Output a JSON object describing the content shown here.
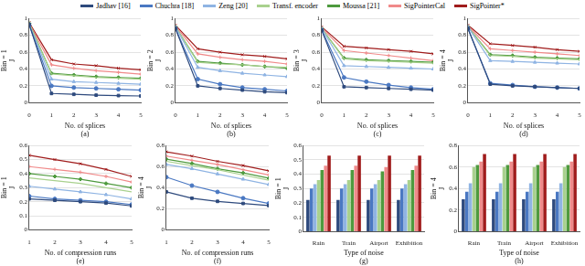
{
  "chart_data": [
    {
      "type": "line",
      "caption": "(a)",
      "annotation": "Bin = 1",
      "y_label": "J",
      "x_label": "No. of splices",
      "legend": "top",
      "x": [
        0,
        1,
        2,
        3,
        4,
        5
      ],
      "xlim": [
        0,
        5
      ],
      "xticks": [
        0,
        1,
        2,
        3,
        4,
        5
      ],
      "ylim": [
        0,
        1
      ],
      "yticks": [
        0,
        0.2,
        0.4,
        0.6,
        0.8,
        1
      ],
      "grid": true,
      "series": [
        {
          "name": "Jadhav [16]",
          "color": "#2e4a7d",
          "marker": "square",
          "values": [
            0.93,
            0.11,
            0.1,
            0.09,
            0.085,
            0.08
          ]
        },
        {
          "name": "Chuchra [18]",
          "color": "#4a78c2",
          "marker": "circle",
          "values": [
            0.92,
            0.2,
            0.18,
            0.17,
            0.16,
            0.15
          ]
        },
        {
          "name": "Zeng [20]",
          "color": "#8fb4e3",
          "marker": "triangle",
          "values": [
            0.93,
            0.28,
            0.25,
            0.24,
            0.23,
            0.22
          ]
        },
        {
          "name": "Transf. encoder",
          "color": "#a9d18e",
          "marker": "none",
          "values": [
            0.94,
            0.34,
            0.32,
            0.3,
            0.29,
            0.28
          ]
        },
        {
          "name": "Moussa [21]",
          "color": "#4e9a3e",
          "marker": "diamond",
          "values": [
            0.94,
            0.35,
            0.33,
            0.31,
            0.3,
            0.29
          ]
        },
        {
          "name": "SigPointerCal",
          "color": "#f08a8a",
          "marker": "cross",
          "values": [
            0.94,
            0.45,
            0.41,
            0.38,
            0.36,
            0.34
          ]
        },
        {
          "name": "SigPointer*",
          "color": "#a01c1c",
          "marker": "x",
          "values": [
            0.95,
            0.51,
            0.46,
            0.44,
            0.41,
            0.39
          ]
        }
      ]
    },
    {
      "type": "line",
      "caption": "(b)",
      "annotation": "Bin = 2",
      "y_label": "J",
      "x_label": "No. of splices",
      "x": [
        0,
        1,
        2,
        3,
        4,
        5
      ],
      "xlim": [
        0,
        5
      ],
      "xticks": [
        0,
        1,
        2,
        3,
        4,
        5
      ],
      "ylim": [
        0,
        1
      ],
      "yticks": [
        0,
        0.2,
        0.4,
        0.6,
        0.8,
        1
      ],
      "grid": true,
      "series": [
        {
          "name": "Jadhav [16]",
          "color": "#2e4a7d",
          "marker": "square",
          "values": [
            0.88,
            0.2,
            0.17,
            0.15,
            0.13,
            0.12
          ]
        },
        {
          "name": "Chuchra [18]",
          "color": "#4a78c2",
          "marker": "circle",
          "values": [
            0.88,
            0.28,
            0.22,
            0.18,
            0.16,
            0.14
          ]
        },
        {
          "name": "Zeng [20]",
          "color": "#8fb4e3",
          "marker": "triangle",
          "values": [
            0.9,
            0.42,
            0.38,
            0.35,
            0.33,
            0.31
          ]
        },
        {
          "name": "Transf. encoder",
          "color": "#a9d18e",
          "marker": "none",
          "values": [
            0.9,
            0.48,
            0.46,
            0.45,
            0.43,
            0.42
          ]
        },
        {
          "name": "Moussa [21]",
          "color": "#4e9a3e",
          "marker": "diamond",
          "values": [
            0.9,
            0.49,
            0.47,
            0.45,
            0.43,
            0.41
          ]
        },
        {
          "name": "SigPointerCal",
          "color": "#f08a8a",
          "marker": "cross",
          "values": [
            0.91,
            0.58,
            0.54,
            0.51,
            0.49,
            0.46
          ]
        },
        {
          "name": "SigPointer*",
          "color": "#a01c1c",
          "marker": "x",
          "values": [
            0.92,
            0.64,
            0.6,
            0.57,
            0.55,
            0.52
          ]
        }
      ]
    },
    {
      "type": "line",
      "caption": "(c)",
      "annotation": "Bin = 3",
      "y_label": "J",
      "x_label": "No. of splices",
      "x": [
        0,
        1,
        2,
        3,
        4,
        5
      ],
      "xlim": [
        0,
        5
      ],
      "xticks": [
        0,
        1,
        2,
        3,
        4,
        5
      ],
      "ylim": [
        0,
        1
      ],
      "yticks": [
        0,
        0.2,
        0.4,
        0.6,
        0.8,
        1
      ],
      "grid": true,
      "series": [
        {
          "name": "Jadhav [16]",
          "color": "#2e4a7d",
          "marker": "square",
          "values": [
            0.86,
            0.19,
            0.18,
            0.17,
            0.16,
            0.15
          ]
        },
        {
          "name": "Chuchra [18]",
          "color": "#4a78c2",
          "marker": "circle",
          "values": [
            0.86,
            0.3,
            0.25,
            0.21,
            0.18,
            0.16
          ]
        },
        {
          "name": "Zeng [20]",
          "color": "#8fb4e3",
          "marker": "triangle",
          "values": [
            0.88,
            0.44,
            0.43,
            0.42,
            0.41,
            0.4
          ]
        },
        {
          "name": "Transf. encoder",
          "color": "#a9d18e",
          "marker": "none",
          "values": [
            0.88,
            0.52,
            0.5,
            0.49,
            0.48,
            0.47
          ]
        },
        {
          "name": "Moussa [21]",
          "color": "#4e9a3e",
          "marker": "diamond",
          "values": [
            0.88,
            0.53,
            0.51,
            0.5,
            0.49,
            0.48
          ]
        },
        {
          "name": "SigPointerCal",
          "color": "#f08a8a",
          "marker": "cross",
          "values": [
            0.89,
            0.62,
            0.59,
            0.56,
            0.53,
            0.5
          ]
        },
        {
          "name": "SigPointer*",
          "color": "#a01c1c",
          "marker": "x",
          "values": [
            0.9,
            0.67,
            0.65,
            0.63,
            0.61,
            0.58
          ]
        }
      ]
    },
    {
      "type": "line",
      "caption": "(d)",
      "annotation": "Bin = 4",
      "y_label": "J",
      "x_label": "No. of splices",
      "x": [
        0,
        1,
        2,
        3,
        4,
        5
      ],
      "xlim": [
        0,
        5
      ],
      "xticks": [
        0,
        1,
        2,
        3,
        4,
        5
      ],
      "ylim": [
        0,
        1
      ],
      "yticks": [
        0,
        0.2,
        0.4,
        0.6,
        0.8,
        1
      ],
      "grid": true,
      "series": [
        {
          "name": "Jadhav [16]",
          "color": "#2e4a7d",
          "marker": "square",
          "values": [
            0.88,
            0.22,
            0.2,
            0.19,
            0.18,
            0.17
          ]
        },
        {
          "name": "Chuchra [18]",
          "color": "#4a78c2",
          "marker": "circle",
          "values": [
            0.88,
            0.23,
            0.21,
            0.19,
            0.18,
            0.17
          ]
        },
        {
          "name": "Zeng [20]",
          "color": "#8fb4e3",
          "marker": "triangle",
          "values": [
            0.9,
            0.5,
            0.49,
            0.48,
            0.47,
            0.46
          ]
        },
        {
          "name": "Transf. encoder",
          "color": "#a9d18e",
          "marker": "none",
          "values": [
            0.9,
            0.56,
            0.55,
            0.53,
            0.52,
            0.51
          ]
        },
        {
          "name": "Moussa [21]",
          "color": "#4e9a3e",
          "marker": "diamond",
          "values": [
            0.9,
            0.57,
            0.56,
            0.54,
            0.53,
            0.52
          ]
        },
        {
          "name": "SigPointerCal",
          "color": "#f08a8a",
          "marker": "cross",
          "values": [
            0.91,
            0.64,
            0.62,
            0.6,
            0.58,
            0.56
          ]
        },
        {
          "name": "SigPointer*",
          "color": "#a01c1c",
          "marker": "x",
          "values": [
            0.92,
            0.7,
            0.68,
            0.66,
            0.63,
            0.61
          ]
        }
      ]
    },
    {
      "type": "line",
      "caption": "(e)",
      "annotation": "Bin = 1",
      "y_label": "J",
      "x_label": "No. of compression runs",
      "x": [
        1,
        2,
        3,
        4,
        5
      ],
      "xlim": [
        1,
        5
      ],
      "xticks": [
        1,
        2,
        3,
        4,
        5
      ],
      "ylim": [
        0,
        0.6
      ],
      "yticks": [
        0,
        0.1,
        0.2,
        0.3,
        0.4,
        0.5,
        0.6
      ],
      "grid": true,
      "series": [
        {
          "name": "Jadhav [16]",
          "color": "#2e4a7d",
          "marker": "square",
          "values": [
            0.22,
            0.21,
            0.2,
            0.19,
            0.17
          ]
        },
        {
          "name": "Chuchra [18]",
          "color": "#4a78c2",
          "marker": "circle",
          "values": [
            0.24,
            0.22,
            0.21,
            0.2,
            0.18
          ]
        },
        {
          "name": "Zeng [20]",
          "color": "#8fb4e3",
          "marker": "triangle",
          "values": [
            0.31,
            0.29,
            0.27,
            0.25,
            0.22
          ]
        },
        {
          "name": "Transf. encoder",
          "color": "#a9d18e",
          "marker": "none",
          "values": [
            0.37,
            0.35,
            0.33,
            0.3,
            0.27
          ]
        },
        {
          "name": "Moussa [21]",
          "color": "#4e9a3e",
          "marker": "diamond",
          "values": [
            0.4,
            0.38,
            0.36,
            0.33,
            0.3
          ]
        },
        {
          "name": "SigPointerCal",
          "color": "#f08a8a",
          "marker": "cross",
          "values": [
            0.45,
            0.43,
            0.41,
            0.38,
            0.34
          ]
        },
        {
          "name": "SigPointer*",
          "color": "#a01c1c",
          "marker": "x",
          "values": [
            0.53,
            0.5,
            0.47,
            0.43,
            0.38
          ]
        }
      ]
    },
    {
      "type": "line",
      "caption": "(f)",
      "annotation": "Bin = 4",
      "y_label": "J",
      "x_label": "No. of compression runs",
      "x": [
        1,
        2,
        3,
        4,
        5
      ],
      "xlim": [
        1,
        5
      ],
      "xticks": [
        1,
        2,
        3,
        4,
        5
      ],
      "ylim": [
        0,
        0.8
      ],
      "yticks": [
        0,
        0.2,
        0.4,
        0.6,
        0.8
      ],
      "grid": true,
      "series": [
        {
          "name": "Jadhav [16]",
          "color": "#2e4a7d",
          "marker": "square",
          "values": [
            0.36,
            0.3,
            0.27,
            0.25,
            0.23
          ]
        },
        {
          "name": "Chuchra [18]",
          "color": "#4a78c2",
          "marker": "circle",
          "values": [
            0.5,
            0.42,
            0.36,
            0.3,
            0.25
          ]
        },
        {
          "name": "Zeng [20]",
          "color": "#8fb4e3",
          "marker": "triangle",
          "values": [
            0.62,
            0.58,
            0.53,
            0.48,
            0.43
          ]
        },
        {
          "name": "Transf. encoder",
          "color": "#a9d18e",
          "marker": "none",
          "values": [
            0.65,
            0.61,
            0.57,
            0.52,
            0.47
          ]
        },
        {
          "name": "Moussa [21]",
          "color": "#4e9a3e",
          "marker": "diamond",
          "values": [
            0.67,
            0.63,
            0.58,
            0.54,
            0.49
          ]
        },
        {
          "name": "SigPointerCal",
          "color": "#f08a8a",
          "marker": "cross",
          "values": [
            0.7,
            0.66,
            0.62,
            0.57,
            0.52
          ]
        },
        {
          "name": "SigPointer*",
          "color": "#a01c1c",
          "marker": "x",
          "values": [
            0.74,
            0.7,
            0.65,
            0.61,
            0.56
          ]
        }
      ]
    },
    {
      "type": "bar",
      "caption": "(g)",
      "annotation": "Bin = 1",
      "y_label": "J",
      "x_label": "Type of noise",
      "categories": [
        "Rain",
        "Train",
        "Airport",
        "Exhibition"
      ],
      "ylim": [
        0,
        0.6
      ],
      "yticks": [
        0,
        0.1,
        0.2,
        0.3,
        0.4,
        0.5,
        0.6
      ],
      "grid": true,
      "series": [
        {
          "name": "Jadhav [16]",
          "color": "#2e4a7d",
          "values": [
            0.22,
            0.22,
            0.22,
            0.22
          ]
        },
        {
          "name": "Chuchra [18]",
          "color": "#4a78c2",
          "values": [
            0.3,
            0.3,
            0.3,
            0.3
          ]
        },
        {
          "name": "Zeng [20]",
          "color": "#8fb4e3",
          "values": [
            0.33,
            0.33,
            0.33,
            0.33
          ]
        },
        {
          "name": "Transf. encoder",
          "color": "#a9d18e",
          "values": [
            0.36,
            0.36,
            0.36,
            0.36
          ]
        },
        {
          "name": "Moussa [21]",
          "color": "#4e9a3e",
          "values": [
            0.43,
            0.43,
            0.42,
            0.43
          ]
        },
        {
          "name": "SigPointerCal",
          "color": "#f08a8a",
          "values": [
            0.46,
            0.46,
            0.45,
            0.46
          ]
        },
        {
          "name": "SigPointer*",
          "color": "#a01c1c",
          "values": [
            0.53,
            0.53,
            0.53,
            0.53
          ]
        }
      ]
    },
    {
      "type": "bar",
      "caption": "(h)",
      "annotation": "Bin = 4",
      "y_label": "J",
      "x_label": "Type of noise",
      "categories": [
        "Rain",
        "Train",
        "Airport",
        "Exhibition"
      ],
      "ylim": [
        0,
        0.8
      ],
      "yticks": [
        0,
        0.2,
        0.4,
        0.6,
        0.8
      ],
      "grid": true,
      "series": [
        {
          "name": "Jadhav [16]",
          "color": "#2e4a7d",
          "values": [
            0.3,
            0.3,
            0.3,
            0.3
          ]
        },
        {
          "name": "Chuchra [18]",
          "color": "#4a78c2",
          "values": [
            0.37,
            0.37,
            0.37,
            0.37
          ]
        },
        {
          "name": "Zeng [20]",
          "color": "#8fb4e3",
          "values": [
            0.45,
            0.45,
            0.45,
            0.45
          ]
        },
        {
          "name": "Transf. encoder",
          "color": "#a9d18e",
          "values": [
            0.6,
            0.6,
            0.6,
            0.6
          ]
        },
        {
          "name": "Moussa [21]",
          "color": "#4e9a3e",
          "values": [
            0.62,
            0.62,
            0.62,
            0.62
          ]
        },
        {
          "name": "SigPointerCal",
          "color": "#f08a8a",
          "values": [
            0.65,
            0.65,
            0.65,
            0.65
          ]
        },
        {
          "name": "SigPointer*",
          "color": "#a01c1c",
          "values": [
            0.72,
            0.72,
            0.72,
            0.72
          ]
        }
      ]
    }
  ]
}
